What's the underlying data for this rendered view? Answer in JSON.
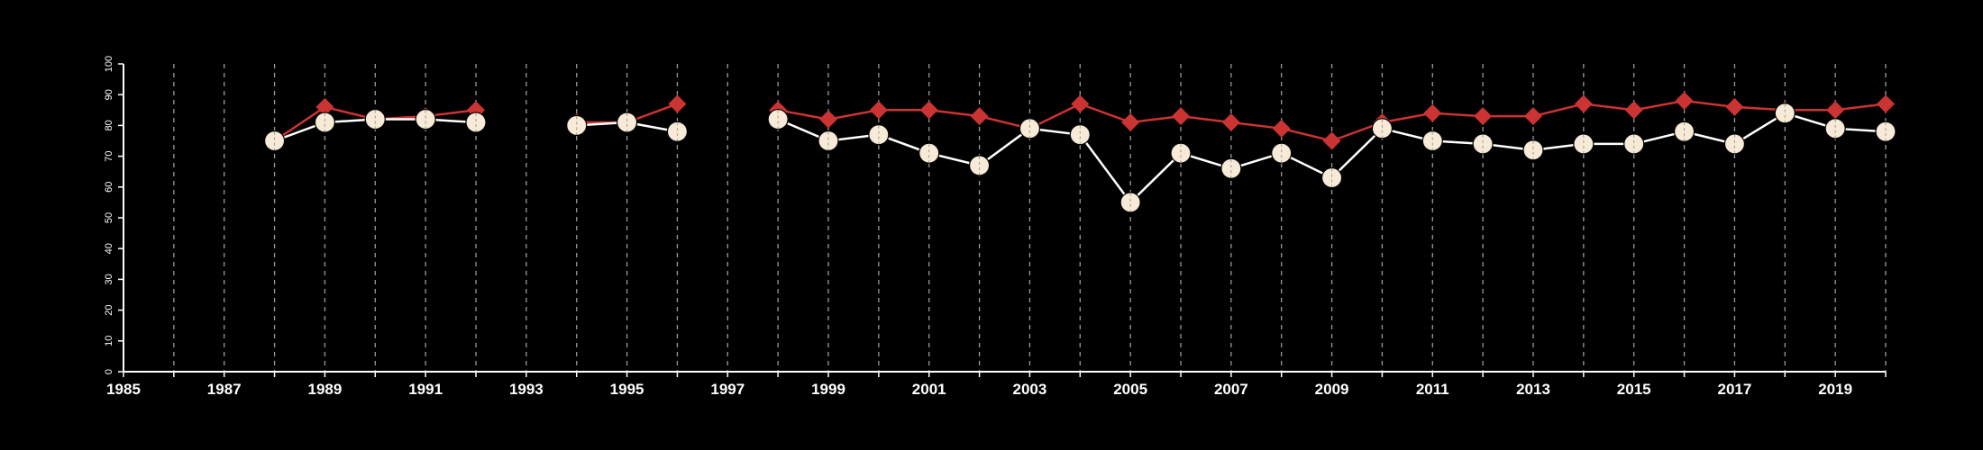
{
  "chart_data": {
    "type": "line",
    "title": "",
    "xlabel": "",
    "ylabel": "",
    "xlim": [
      1985,
      2020
    ],
    "ylim": [
      0,
      100
    ],
    "x_ticks": [
      1985,
      1987,
      1989,
      1991,
      1993,
      1995,
      1997,
      1999,
      2001,
      2003,
      2005,
      2007,
      2009,
      2011,
      2013,
      2015,
      2017,
      2019
    ],
    "x_tick_labels": [
      "1985",
      "1987",
      "1989",
      "1991",
      "1993",
      "1995",
      "1997",
      "1999",
      "2001",
      "2003",
      "2005",
      "2007",
      "2009",
      "2011",
      "2013",
      "2015",
      "2017",
      "2019"
    ],
    "y_ticks": [
      0,
      10,
      20,
      30,
      40,
      50,
      60,
      70,
      80,
      90,
      100
    ],
    "y_tick_labels": [
      "0",
      "10",
      "20",
      "30",
      "40",
      "50",
      "60",
      "70",
      "80",
      "90",
      "100"
    ],
    "vertical_grid": "dashed, every year from 1986 to 2020",
    "legend": "none",
    "series": [
      {
        "marker": "diamond",
        "color": "#cc3333",
        "segments": [
          [
            [
              1988,
              75
            ],
            [
              1989,
              86
            ],
            [
              1990,
              82
            ],
            [
              1991,
              83
            ],
            [
              1992,
              85
            ]
          ],
          [
            [
              1994,
              81
            ],
            [
              1995,
              81
            ],
            [
              1996,
              87
            ]
          ],
          [
            [
              1998,
              85
            ],
            [
              1999,
              82
            ],
            [
              2000,
              85
            ],
            [
              2001,
              85
            ],
            [
              2002,
              83
            ],
            [
              2003,
              79
            ],
            [
              2004,
              87
            ],
            [
              2005,
              81
            ],
            [
              2006,
              83
            ],
            [
              2007,
              81
            ],
            [
              2008,
              79
            ],
            [
              2009,
              75
            ],
            [
              2010,
              81
            ],
            [
              2011,
              84
            ],
            [
              2012,
              83
            ],
            [
              2013,
              83
            ],
            [
              2014,
              87
            ],
            [
              2015,
              85
            ],
            [
              2016,
              88
            ],
            [
              2017,
              86
            ],
            [
              2018,
              85
            ],
            [
              2019,
              85
            ],
            [
              2020,
              87
            ]
          ]
        ]
      },
      {
        "marker": "circle",
        "color": "#f7ead6",
        "line_color": "#ffffff",
        "segments": [
          [
            [
              1988,
              75
            ],
            [
              1989,
              81
            ],
            [
              1990,
              82
            ],
            [
              1991,
              82
            ],
            [
              1992,
              81
            ]
          ],
          [
            [
              1994,
              80
            ],
            [
              1995,
              81
            ],
            [
              1996,
              78
            ]
          ],
          [
            [
              1998,
              82
            ],
            [
              1999,
              75
            ],
            [
              2000,
              77
            ],
            [
              2001,
              71
            ],
            [
              2002,
              67
            ],
            [
              2003,
              79
            ],
            [
              2004,
              77
            ],
            [
              2005,
              55
            ],
            [
              2006,
              71
            ],
            [
              2007,
              66
            ],
            [
              2008,
              71
            ],
            [
              2009,
              63
            ],
            [
              2010,
              79
            ],
            [
              2011,
              75
            ],
            [
              2012,
              74
            ],
            [
              2013,
              72
            ],
            [
              2014,
              74
            ],
            [
              2015,
              74
            ],
            [
              2016,
              78
            ],
            [
              2017,
              74
            ],
            [
              2018,
              84
            ],
            [
              2019,
              79
            ],
            [
              2020,
              78
            ]
          ]
        ]
      }
    ]
  }
}
